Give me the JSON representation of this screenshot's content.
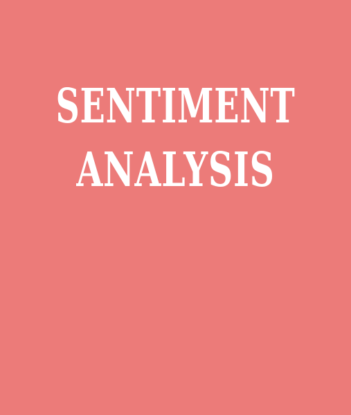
{
  "title": {
    "line1": "SENTIMENT",
    "line2": "ANALYSIS"
  },
  "colors": {
    "background": "#ec7b79",
    "text": "#ffffff"
  }
}
